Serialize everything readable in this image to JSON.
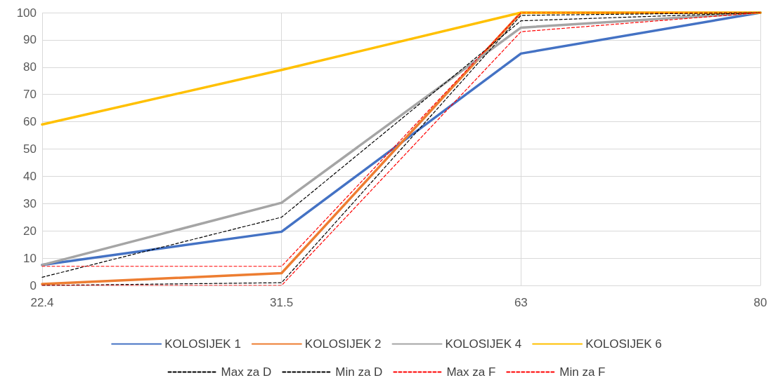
{
  "chart_data": {
    "type": "line",
    "categories": [
      "22.4",
      "31.5",
      "63",
      "80"
    ],
    "ylim": [
      0,
      100
    ],
    "yticks": [
      0,
      10,
      20,
      30,
      40,
      50,
      60,
      70,
      80,
      90,
      100
    ],
    "grid": true,
    "legend": "bottom",
    "marker": "none",
    "series": [
      {
        "name": "KOLOSIJEK 1",
        "color": "#4472c4",
        "values": [
          7.5,
          19.7,
          85,
          100
        ]
      },
      {
        "name": "KOLOSIJEK 2",
        "color": "#ed7d31",
        "values": [
          0.5,
          4.5,
          100,
          100
        ]
      },
      {
        "name": "KOLOSIJEK 4",
        "color": "#a5a5a5",
        "values": [
          7.5,
          30.3,
          94.5,
          100
        ]
      },
      {
        "name": "KOLOSIJEK 6",
        "color": "#ffc000",
        "values": [
          59,
          79,
          100,
          100
        ]
      },
      {
        "name": "Max za D",
        "color": "#000000",
        "line_style": "dashed",
        "values": [
          3,
          25,
          97,
          100
        ]
      },
      {
        "name": "Min za D",
        "color": "#000000",
        "line_style": "dashed",
        "values": [
          0,
          1,
          99,
          100
        ]
      },
      {
        "name": "Max za F",
        "color": "#ff0000",
        "line_style": "dashed",
        "values": [
          7,
          7,
          100,
          100
        ]
      },
      {
        "name": "Min za F",
        "color": "#ff0000",
        "line_style": "dashed",
        "values": [
          0,
          0,
          93,
          100
        ]
      }
    ]
  }
}
